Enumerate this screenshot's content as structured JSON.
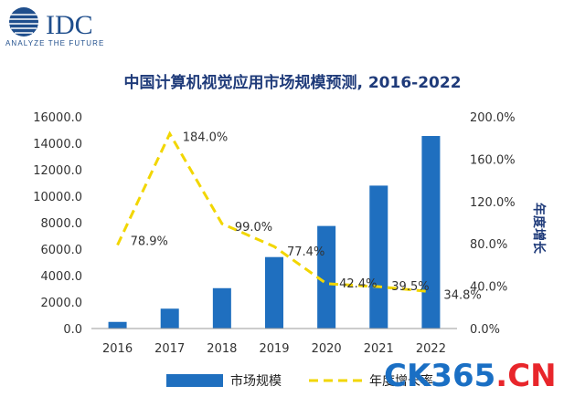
{
  "logo": {
    "brand": "IDC",
    "tagline": "ANALYZE THE FUTURE",
    "brand_color": "#1f4e8c"
  },
  "watermark": {
    "part1": "CK365",
    "part2": ".CN",
    "color1": "#1a6fc4",
    "color2": "#e8262b"
  },
  "chart_data": {
    "type": "bar+line",
    "title": "中国计算机视觉应用市场规模预测, 2016-2022",
    "categories": [
      "2016",
      "2017",
      "2018",
      "2019",
      "2020",
      "2021",
      "2022"
    ],
    "series": [
      {
        "name": "市场规模",
        "type": "bar",
        "axis": "left",
        "color": "#1f6fbf",
        "values": [
          500,
          1500,
          3050,
          5400,
          7750,
          10800,
          14550
        ]
      },
      {
        "name": "年度增长率",
        "type": "line",
        "style": "dashed",
        "axis": "right",
        "color": "#f2d600",
        "values": [
          78.9,
          184.0,
          99.0,
          77.4,
          42.4,
          39.5,
          34.8
        ],
        "labels": [
          "78.9%",
          "184.0%",
          "99.0%",
          "77.4%",
          "42.4%",
          "39.5%",
          "34.8%"
        ]
      }
    ],
    "y_left": {
      "min": 0,
      "max": 16000,
      "step": 2000,
      "ticks": [
        "0.0",
        "2000.0",
        "4000.0",
        "6000.0",
        "8000.0",
        "10000.0",
        "12000.0",
        "14000.0",
        "16000.0"
      ]
    },
    "y_right": {
      "min": 0,
      "max": 200,
      "step": 40,
      "label": "年度增长",
      "ticks": [
        "0.0%",
        "40.0%",
        "80.0%",
        "120.0%",
        "160.0%",
        "200.0%"
      ]
    },
    "legend_position": "bottom",
    "grid": false
  }
}
